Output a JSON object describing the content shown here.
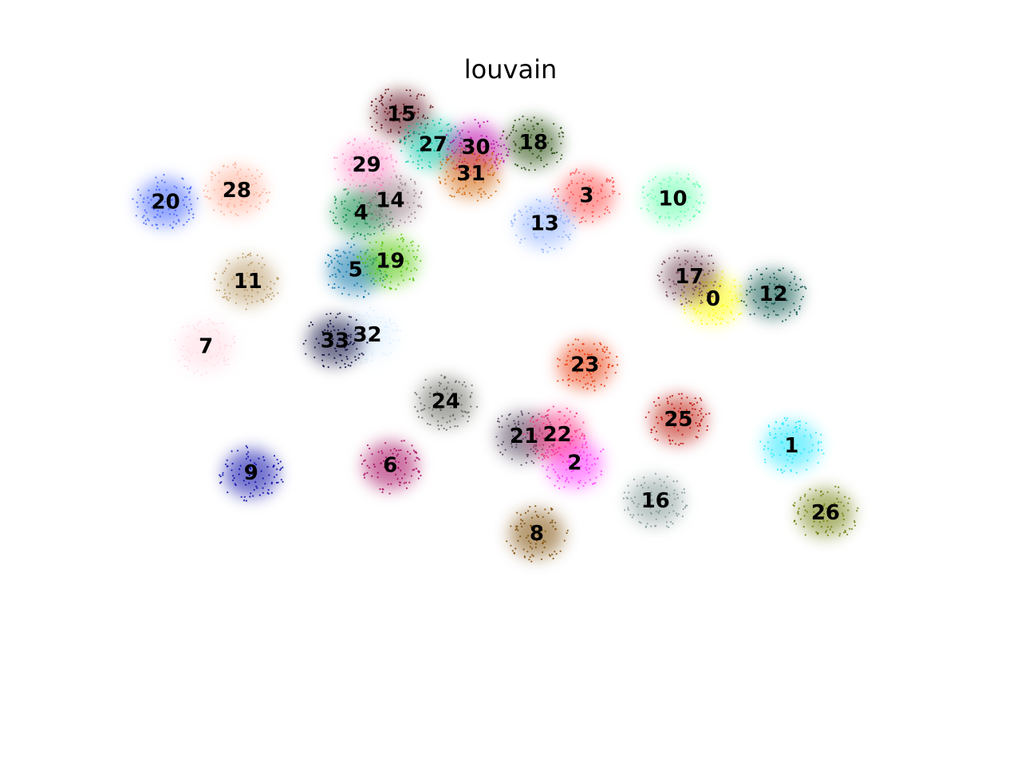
{
  "chart_data": {
    "type": "scatter",
    "title": "louvain",
    "xlabel": "",
    "ylabel": "",
    "grid": false,
    "axes_visible": false,
    "legend": "on data",
    "xlim": [
      0,
      100
    ],
    "ylim": [
      0,
      100
    ],
    "clusters": [
      {
        "label": "0",
        "x": 74.0,
        "y": 64.4,
        "color": "#ffff00"
      },
      {
        "label": "1",
        "x": 83.9,
        "y": 39.2,
        "color": "#1ce6ff"
      },
      {
        "label": "2",
        "x": 56.5,
        "y": 36.2,
        "color": "#ff34ff"
      },
      {
        "label": "3",
        "x": 58.0,
        "y": 82.1,
        "color": "#ff4a46"
      },
      {
        "label": "4",
        "x": 29.5,
        "y": 79.2,
        "color": "#008941"
      },
      {
        "label": "5",
        "x": 28.8,
        "y": 69.4,
        "color": "#006fa6"
      },
      {
        "label": "6",
        "x": 33.2,
        "y": 35.8,
        "color": "#a30059"
      },
      {
        "label": "7",
        "x": 9.9,
        "y": 56.2,
        "color": "#ffdbe5"
      },
      {
        "label": "8",
        "x": 51.7,
        "y": 24.1,
        "color": "#7a4900"
      },
      {
        "label": "9",
        "x": 15.6,
        "y": 34.5,
        "color": "#0000a6"
      },
      {
        "label": "10",
        "x": 68.9,
        "y": 81.6,
        "color": "#63ffac"
      },
      {
        "label": "11",
        "x": 15.2,
        "y": 67.4,
        "color": "#b79762"
      },
      {
        "label": "12",
        "x": 81.6,
        "y": 65.2,
        "color": "#004d43"
      },
      {
        "label": "13",
        "x": 52.7,
        "y": 77.3,
        "color": "#8fb0ff"
      },
      {
        "label": "14",
        "x": 33.2,
        "y": 81.3,
        "color": "#997d87"
      },
      {
        "label": "15",
        "x": 34.6,
        "y": 96.1,
        "color": "#5a0007"
      },
      {
        "label": "16",
        "x": 66.7,
        "y": 29.7,
        "color": "#809693"
      },
      {
        "label": "17",
        "x": 71.0,
        "y": 68.2,
        "color": "#6a3a4c"
      },
      {
        "label": "18",
        "x": 51.3,
        "y": 91.2,
        "color": "#1b4400"
      },
      {
        "label": "19",
        "x": 33.2,
        "y": 70.9,
        "color": "#4fc601"
      },
      {
        "label": "20",
        "x": 4.8,
        "y": 81.0,
        "color": "#3b5dff"
      },
      {
        "label": "21",
        "x": 50.1,
        "y": 40.8,
        "color": "#4a3b53"
      },
      {
        "label": "22",
        "x": 54.3,
        "y": 41.1,
        "color": "#ff2f80"
      },
      {
        "label": "23",
        "x": 57.8,
        "y": 53.1,
        "color": "#e83000"
      },
      {
        "label": "24",
        "x": 40.2,
        "y": 46.8,
        "color": "#61615a"
      },
      {
        "label": "25",
        "x": 69.6,
        "y": 43.7,
        "color": "#ba0900"
      },
      {
        "label": "26",
        "x": 88.2,
        "y": 27.7,
        "color": "#6b7900"
      },
      {
        "label": "27",
        "x": 38.6,
        "y": 90.9,
        "color": "#00c2a0"
      },
      {
        "label": "28",
        "x": 13.8,
        "y": 83.0,
        "color": "#ffaa92"
      },
      {
        "label": "29",
        "x": 30.2,
        "y": 87.4,
        "color": "#ff90c9"
      },
      {
        "label": "30",
        "x": 44.0,
        "y": 90.4,
        "color": "#b903aa"
      },
      {
        "label": "31",
        "x": 43.4,
        "y": 85.9,
        "color": "#d16100"
      },
      {
        "label": "32",
        "x": 30.3,
        "y": 58.2,
        "color": "#ddefff"
      },
      {
        "label": "33",
        "x": 26.2,
        "y": 57.2,
        "color": "#000035"
      }
    ]
  }
}
